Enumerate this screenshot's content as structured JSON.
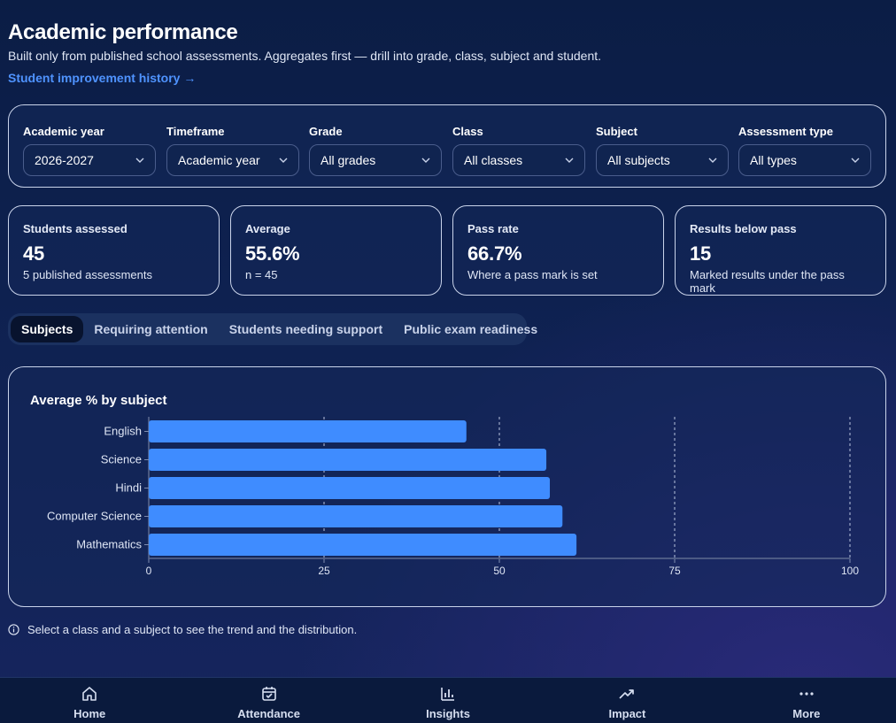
{
  "header": {
    "title": "Academic performance",
    "subtitle": "Built only from published school assessments. Aggregates first — drill into grade, class, subject and student.",
    "history_link": "Student improvement history →"
  },
  "filters": [
    {
      "label": "Academic year",
      "value": "2026-2027"
    },
    {
      "label": "Timeframe",
      "value": "Academic year"
    },
    {
      "label": "Grade",
      "value": "All grades"
    },
    {
      "label": "Class",
      "value": "All classes"
    },
    {
      "label": "Subject",
      "value": "All subjects"
    },
    {
      "label": "Assessment type",
      "value": "All types"
    }
  ],
  "kpis": [
    {
      "label": "Students assessed",
      "value": "45",
      "sub": "5 published assessments"
    },
    {
      "label": "Average",
      "value": "55.6%",
      "sub": "n = 45"
    },
    {
      "label": "Pass rate",
      "value": "66.7%",
      "sub": "Where a pass mark is set"
    },
    {
      "label": "Results below pass",
      "value": "15",
      "sub": "Marked results under the pass mark"
    }
  ],
  "tabs": [
    {
      "label": "Subjects",
      "active": true
    },
    {
      "label": "Requiring attention",
      "active": false
    },
    {
      "label": "Students needing support",
      "active": false
    },
    {
      "label": "Public exam readiness",
      "active": false
    }
  ],
  "chart_data": {
    "type": "bar",
    "orientation": "horizontal",
    "title": "Average % by subject",
    "categories": [
      "English",
      "Science",
      "Hindi",
      "Computer Science",
      "Mathematics"
    ],
    "values": [
      45.3,
      56.7,
      57.2,
      59.0,
      61.0
    ],
    "xlim": [
      0,
      100
    ],
    "xticks": [
      0,
      25,
      50,
      75,
      100
    ],
    "grid": true,
    "bar_color": "#3f8cff"
  },
  "hint": "Select a class and a subject to see the trend and the distribution.",
  "nav": [
    {
      "label": "Home",
      "icon": "home-icon"
    },
    {
      "label": "Attendance",
      "icon": "calendar-check-icon"
    },
    {
      "label": "Insights",
      "icon": "bar-chart-icon"
    },
    {
      "label": "Impact",
      "icon": "trending-up-icon"
    },
    {
      "label": "More",
      "icon": "more-dots-icon"
    }
  ],
  "colors": {
    "accent": "#4f93ff",
    "bar": "#3f8cff",
    "background": "#0e2150"
  }
}
